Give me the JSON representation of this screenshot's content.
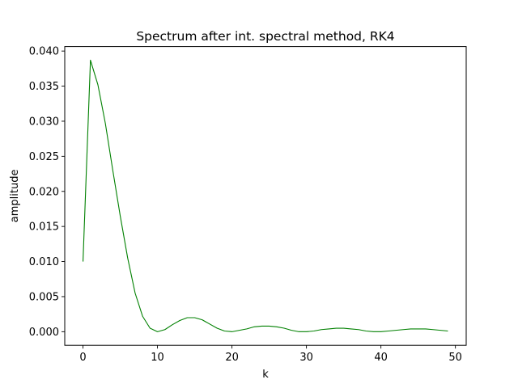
{
  "chart_data": {
    "type": "line",
    "title": "Spectrum after int. spectral method, RK4",
    "xlabel": "k",
    "ylabel": "amplitude",
    "xlim": [
      -2.45,
      51.45
    ],
    "ylim": [
      -0.00194,
      0.04064
    ],
    "xticks": [
      0,
      10,
      20,
      30,
      40,
      50
    ],
    "xtick_labels": [
      "0",
      "10",
      "20",
      "30",
      "40",
      "50"
    ],
    "yticks": [
      0.0,
      0.005,
      0.01,
      0.015,
      0.02,
      0.025,
      0.03,
      0.035,
      0.04
    ],
    "ytick_labels": [
      "0.000",
      "0.005",
      "0.010",
      "0.015",
      "0.020",
      "0.025",
      "0.030",
      "0.035",
      "0.040"
    ],
    "grid": false,
    "series": [
      {
        "color": "#008000",
        "x": [
          0,
          1,
          2,
          3,
          4,
          5,
          6,
          7,
          8,
          9,
          10,
          11,
          12,
          13,
          14,
          15,
          16,
          17,
          18,
          19,
          20,
          21,
          22,
          23,
          24,
          25,
          26,
          27,
          28,
          29,
          30,
          31,
          32,
          33,
          34,
          35,
          36,
          37,
          38,
          39,
          40,
          41,
          42,
          43,
          44,
          45,
          46,
          47,
          48,
          49
        ],
        "values": [
          0.01,
          0.0387,
          0.0352,
          0.0297,
          0.023,
          0.0165,
          0.0105,
          0.0055,
          0.0022,
          0.0005,
          0.0,
          0.0003,
          0.001,
          0.0016,
          0.002,
          0.002,
          0.0017,
          0.0011,
          0.0005,
          0.0001,
          0.0,
          0.0002,
          0.0004,
          0.0007,
          0.0008,
          0.0008,
          0.0007,
          0.0005,
          0.0002,
          0.0,
          0.0,
          0.0001,
          0.0003,
          0.0004,
          0.0005,
          0.0005,
          0.0004,
          0.0003,
          0.0001,
          0.0,
          0.0,
          0.0001,
          0.0002,
          0.0003,
          0.0004,
          0.0004,
          0.0004,
          0.0003,
          0.0002,
          0.0001
        ]
      }
    ]
  }
}
